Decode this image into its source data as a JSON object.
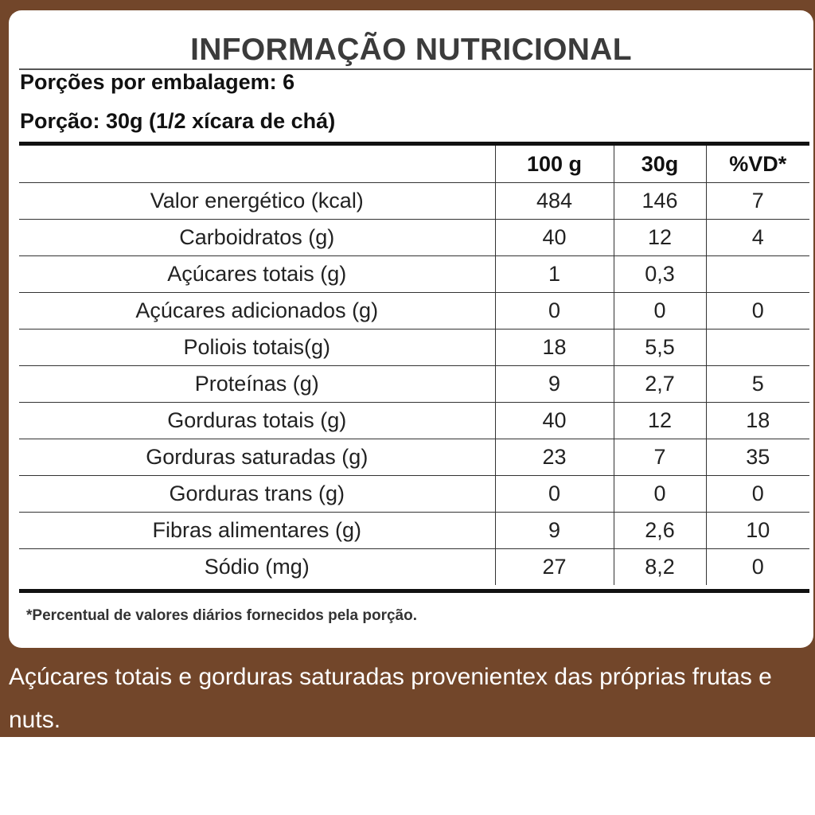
{
  "title": "INFORMAÇÃO NUTRICIONAL",
  "servings_per_package": "Porções por embalagem: 6",
  "serving_size": "Porção: 30g (1/2 xícara de chá)",
  "columns": [
    "",
    "100 g",
    "30g",
    "%VD*"
  ],
  "rows": [
    [
      "Valor energético (kcal)",
      "484",
      "146",
      "7"
    ],
    [
      "Carboidratos (g)",
      "40",
      "12",
      "4"
    ],
    [
      "Açúcares totais (g)",
      "1",
      "0,3",
      ""
    ],
    [
      "Açúcares adicionados (g)",
      "0",
      "0",
      "0"
    ],
    [
      "Poliois totais(g)",
      "18",
      "5,5",
      ""
    ],
    [
      "Proteínas (g)",
      "9",
      "2,7",
      "5"
    ],
    [
      "Gorduras totais (g)",
      "40",
      "12",
      "18"
    ],
    [
      "Gorduras saturadas (g)",
      "23",
      "7",
      "35"
    ],
    [
      "Gorduras trans (g)",
      "0",
      "0",
      "0"
    ],
    [
      "Fibras alimentares (g)",
      "9",
      "2,6",
      "10"
    ],
    [
      "Sódio (mg)",
      "27",
      "8,2",
      "0"
    ]
  ],
  "footnote": "*Percentual de valores diários fornecidos pela porção.",
  "caption": "Açúcares totais e gorduras saturadas provenientex das próprias frutas e nuts.",
  "colors": {
    "background": "#72462a",
    "label": "#ffffff",
    "text": "#222222"
  }
}
